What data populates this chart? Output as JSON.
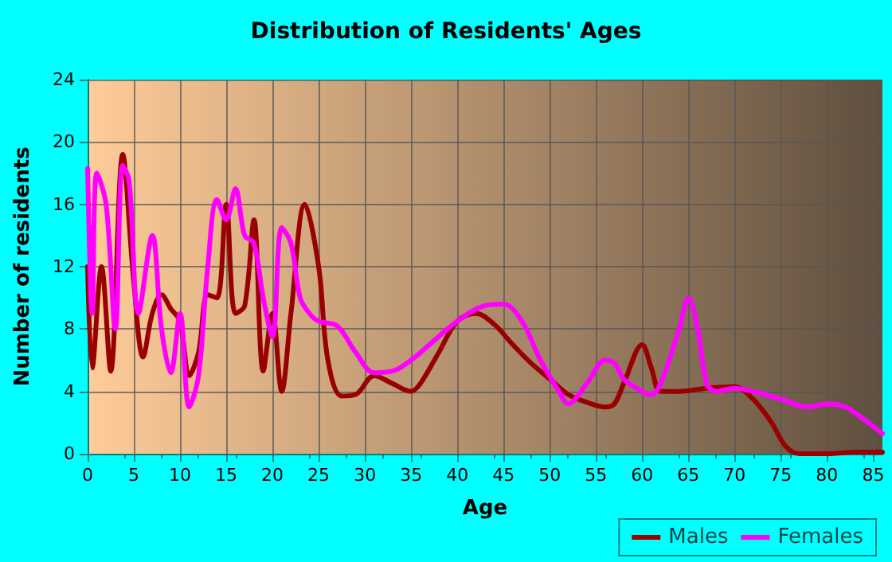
{
  "chart_data": {
    "type": "line",
    "title": "Distribution of Residents' Ages",
    "xlabel": "Age",
    "ylabel": "Number of residents",
    "xlim": [
      0,
      86
    ],
    "xticks": [
      0,
      5,
      10,
      15,
      20,
      25,
      30,
      35,
      40,
      45,
      50,
      55,
      60,
      65,
      70,
      75,
      80,
      85
    ],
    "ylim": [
      0,
      24
    ],
    "yticks": [
      0,
      4,
      8,
      12,
      16,
      20,
      24
    ],
    "grid": true,
    "legend": "bottom right",
    "marker": "none",
    "line_style": "solid",
    "series": [
      {
        "name": "Males",
        "color": "#990000",
        "x": [
          0,
          0.5,
          1.5,
          2.5,
          3.8,
          5,
          6,
          7,
          8,
          9,
          10,
          11,
          12,
          13,
          14,
          15,
          16,
          17,
          18,
          19,
          20,
          21,
          22,
          23.5,
          25,
          26,
          27.5,
          29,
          31,
          33,
          35,
          36,
          38,
          40,
          42,
          44,
          46,
          48,
          50,
          52,
          54,
          56,
          57,
          58,
          60,
          61,
          62,
          64,
          67,
          70,
          72,
          74,
          75.5,
          77,
          80,
          83,
          86
        ],
        "values": [
          12,
          5.5,
          12,
          5.3,
          19.2,
          11,
          6.2,
          9,
          10.2,
          9.3,
          8.5,
          5,
          6.5,
          10.2,
          10,
          16,
          9,
          9.5,
          15,
          5.3,
          9,
          4,
          9,
          16,
          12,
          6,
          3.7,
          3.8,
          5,
          4.5,
          4,
          4.5,
          6.5,
          8.5,
          9,
          8.3,
          7,
          5.8,
          4.8,
          3.8,
          3.3,
          3,
          3.2,
          4.5,
          7,
          5.5,
          4,
          4,
          4.2,
          4.3,
          3.5,
          2,
          0.5,
          0,
          0,
          0.1,
          0.1
        ]
      },
      {
        "name": "Females",
        "color": "#ff00ff",
        "x": [
          0,
          0.5,
          1,
          2,
          3,
          3.8,
          4.5,
          5.5,
          7,
          8,
          9,
          10,
          11,
          12,
          13,
          14,
          15,
          16,
          17,
          18,
          19,
          20,
          21,
          22,
          23,
          24,
          25,
          27,
          29,
          31,
          33,
          35,
          37,
          40,
          43,
          45,
          47,
          49,
          51,
          52,
          54,
          56,
          57,
          58,
          60,
          61,
          62,
          64,
          65,
          66,
          67,
          68,
          70,
          72,
          75,
          78,
          80,
          82,
          84,
          86
        ],
        "values": [
          18.3,
          9,
          18,
          16,
          8,
          18.5,
          17.5,
          9,
          14,
          8,
          5.2,
          9,
          3,
          5,
          12,
          16.3,
          15,
          17,
          14,
          13.5,
          10,
          7.5,
          14.5,
          13.5,
          10,
          9,
          8.5,
          8.2,
          6.5,
          5.2,
          5.3,
          6,
          7,
          8.5,
          9.5,
          9.6,
          8.5,
          6,
          4,
          3.2,
          4.5,
          6,
          5.8,
          4.8,
          4,
          3.8,
          4.5,
          8,
          10,
          8,
          4.5,
          4,
          4.2,
          4,
          3.5,
          3,
          3.2,
          3,
          2.2,
          1.3
        ]
      }
    ]
  }
}
